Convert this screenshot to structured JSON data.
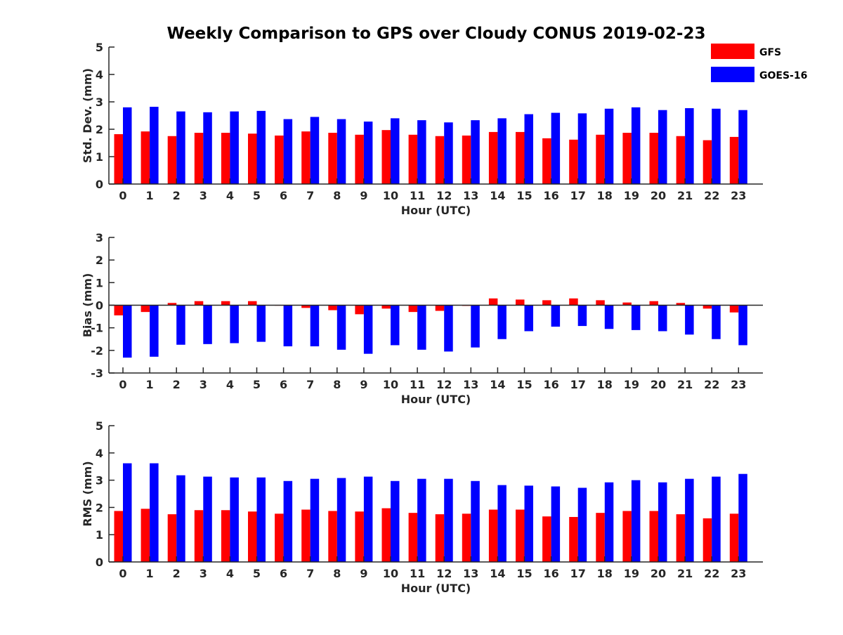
{
  "title": "Weekly Comparison to GPS over Cloudy CONUS 2019-02-23",
  "legend": {
    "placement": "top-right",
    "entries": [
      {
        "name": "GFS",
        "color": "#ff0000"
      },
      {
        "name": "GOES-16",
        "color": "#0000ff"
      }
    ]
  },
  "chart_data": [
    {
      "type": "bar",
      "xlabel": "Hour (UTC)",
      "ylabel": "Std. Dev. (mm)",
      "ylim": [
        0,
        5
      ],
      "yticks": [
        0,
        1,
        2,
        3,
        4,
        5
      ],
      "categories": [
        "0",
        "1",
        "2",
        "3",
        "4",
        "5",
        "6",
        "7",
        "8",
        "9",
        "10",
        "11",
        "12",
        "13",
        "14",
        "15",
        "16",
        "17",
        "18",
        "19",
        "20",
        "21",
        "22",
        "23"
      ],
      "series": [
        {
          "name": "GFS",
          "color": "#ff0000",
          "values": [
            1.82,
            1.92,
            1.75,
            1.87,
            1.87,
            1.84,
            1.77,
            1.92,
            1.87,
            1.8,
            1.97,
            1.8,
            1.75,
            1.77,
            1.9,
            1.9,
            1.67,
            1.62,
            1.8,
            1.87,
            1.87,
            1.75,
            1.6,
            1.72
          ]
        },
        {
          "name": "GOES-16",
          "color": "#0000ff",
          "values": [
            2.8,
            2.82,
            2.65,
            2.62,
            2.65,
            2.67,
            2.37,
            2.45,
            2.37,
            2.28,
            2.4,
            2.33,
            2.25,
            2.33,
            2.4,
            2.55,
            2.6,
            2.58,
            2.75,
            2.8,
            2.7,
            2.77,
            2.75,
            2.7
          ]
        }
      ]
    },
    {
      "type": "bar",
      "xlabel": "Hour (UTC)",
      "ylabel": "Bias (mm)",
      "ylim": [
        -3,
        3
      ],
      "yticks": [
        -3,
        -2,
        -1,
        0,
        1,
        2,
        3
      ],
      "categories": [
        "0",
        "1",
        "2",
        "3",
        "4",
        "5",
        "6",
        "7",
        "8",
        "9",
        "10",
        "11",
        "12",
        "13",
        "14",
        "15",
        "16",
        "17",
        "18",
        "19",
        "20",
        "21",
        "22",
        "23"
      ],
      "series": [
        {
          "name": "GFS",
          "color": "#ff0000",
          "values": [
            -0.45,
            -0.3,
            0.1,
            0.18,
            0.18,
            0.18,
            -0.02,
            -0.12,
            -0.22,
            -0.4,
            -0.15,
            -0.3,
            -0.25,
            -0.03,
            0.3,
            0.25,
            0.22,
            0.3,
            0.22,
            0.12,
            0.18,
            0.1,
            -0.15,
            -0.32
          ]
        },
        {
          "name": "GOES-16",
          "color": "#0000ff",
          "values": [
            -2.32,
            -2.28,
            -1.75,
            -1.72,
            -1.68,
            -1.62,
            -1.82,
            -1.82,
            -1.97,
            -2.15,
            -1.77,
            -1.97,
            -2.05,
            -1.87,
            -1.5,
            -1.15,
            -0.95,
            -0.92,
            -1.05,
            -1.1,
            -1.15,
            -1.3,
            -1.5,
            -1.77
          ]
        }
      ]
    },
    {
      "type": "bar",
      "xlabel": "Hour (UTC)",
      "ylabel": "RMS (mm)",
      "ylim": [
        0,
        5
      ],
      "yticks": [
        0,
        1,
        2,
        3,
        4,
        5
      ],
      "categories": [
        "0",
        "1",
        "2",
        "3",
        "4",
        "5",
        "6",
        "7",
        "8",
        "9",
        "10",
        "11",
        "12",
        "13",
        "14",
        "15",
        "16",
        "17",
        "18",
        "19",
        "20",
        "21",
        "22",
        "23"
      ],
      "series": [
        {
          "name": "GFS",
          "color": "#ff0000",
          "values": [
            1.87,
            1.95,
            1.75,
            1.9,
            1.9,
            1.85,
            1.77,
            1.92,
            1.87,
            1.85,
            1.97,
            1.8,
            1.75,
            1.77,
            1.92,
            1.92,
            1.67,
            1.65,
            1.8,
            1.87,
            1.87,
            1.75,
            1.6,
            1.77
          ]
        },
        {
          "name": "GOES-16",
          "color": "#0000ff",
          "values": [
            3.62,
            3.62,
            3.18,
            3.13,
            3.1,
            3.1,
            2.97,
            3.05,
            3.08,
            3.13,
            2.97,
            3.05,
            3.05,
            2.97,
            2.82,
            2.8,
            2.77,
            2.72,
            2.92,
            3.0,
            2.92,
            3.05,
            3.13,
            3.23
          ]
        }
      ]
    }
  ]
}
